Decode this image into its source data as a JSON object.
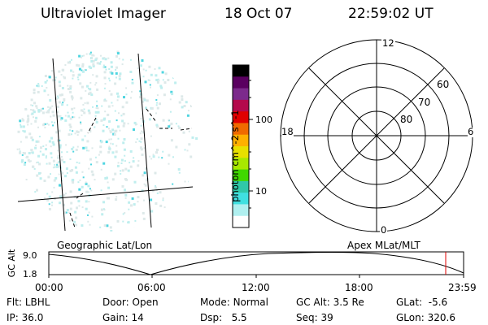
{
  "header": {
    "title": "Ultraviolet Imager",
    "date": "18 Oct 07",
    "time": "22:59:02 UT"
  },
  "colorbar": {
    "unit_label": "photon cm^-2 s^-1",
    "tick_labels": [
      "100",
      "10"
    ],
    "colors": [
      "#000000",
      "#5a0060",
      "#7c2a8c",
      "#b40a4c",
      "#e00000",
      "#f06a00",
      "#ffb000",
      "#e8e000",
      "#a8e800",
      "#40d800",
      "#30c8a8",
      "#40e0e0",
      "#b0f0f0",
      "#ffffff"
    ]
  },
  "image_panel": {
    "label": "Geographic Lat/Lon",
    "aurora_color": "#4fd5e0"
  },
  "polar_plot": {
    "label": "Apex MLat/MLT",
    "mlt_labels": [
      "12",
      "18",
      "6",
      "0"
    ],
    "lat_labels": [
      "60",
      "70",
      "80"
    ]
  },
  "orbit": {
    "y_axis_label": "GC Alt",
    "y_ticks": [
      "9.0",
      "1.8"
    ],
    "x_ticks": [
      "00:00",
      "06:00",
      "12:00",
      "18:00",
      "23:59"
    ],
    "current_marker_color": "#e00000"
  },
  "footer": {
    "flt": {
      "label": "Flt:",
      "value": "LBHL"
    },
    "ip": {
      "label": "IP:",
      "value": "36.0"
    },
    "door": {
      "label": "Door:",
      "value": "Open"
    },
    "gain": {
      "label": "Gain:",
      "value": "14"
    },
    "mode": {
      "label": "Mode:",
      "value": "Normal"
    },
    "dsp": {
      "label": "Dsp:",
      "value": "5.5"
    },
    "gc_alt": {
      "label": "GC Alt:",
      "value": "3.5 Re"
    },
    "seq": {
      "label": "Seq:",
      "value": "39"
    },
    "glat": {
      "label": "GLat:",
      "value": "-5.6"
    },
    "glon": {
      "label": "GLon:",
      "value": "320.6"
    }
  }
}
